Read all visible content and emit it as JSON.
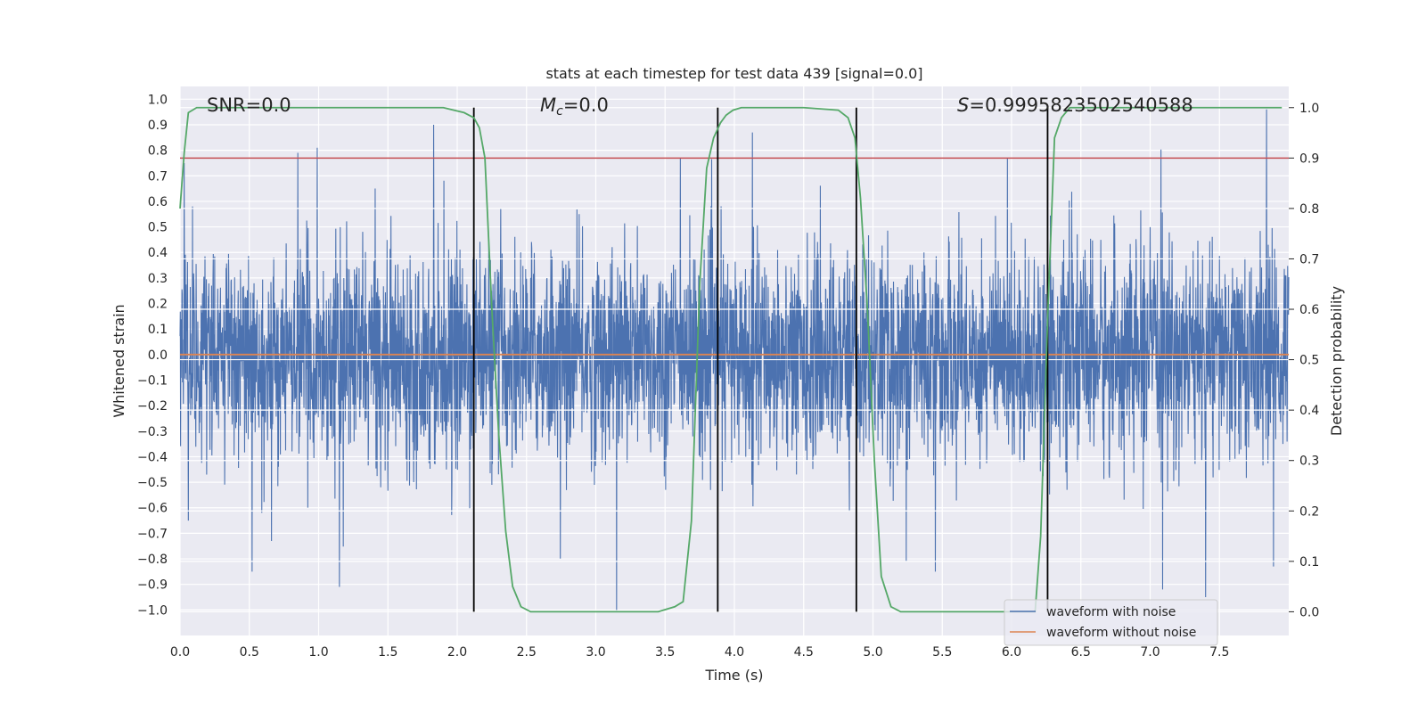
{
  "chart_data": {
    "type": "line",
    "title": "stats at each timestep for test data 439 [signal=0.0]",
    "xlabel": "Time (s)",
    "ylabel_left": "Whitened strain",
    "ylabel_right": "Detection probability",
    "xlim": [
      0.0,
      8.0
    ],
    "ylim_left": [
      -1.1,
      1.05
    ],
    "ylim_right": [
      -0.047,
      1.042
    ],
    "x_ticks": [
      0.0,
      0.5,
      1.0,
      1.5,
      2.0,
      2.5,
      3.0,
      3.5,
      4.0,
      4.5,
      5.0,
      5.5,
      6.0,
      6.5,
      7.0,
      7.5
    ],
    "x_tick_labels": [
      "0.0",
      "0.5",
      "1.0",
      "1.5",
      "2.0",
      "2.5",
      "3.0",
      "3.5",
      "4.0",
      "4.5",
      "5.0",
      "5.5",
      "6.0",
      "6.5",
      "7.0",
      "7.5"
    ],
    "y_left_ticks": [
      -1.0,
      -0.9,
      -0.8,
      -0.7,
      -0.6,
      -0.5,
      -0.4,
      -0.3,
      -0.2,
      -0.1,
      0.0,
      0.1,
      0.2,
      0.3,
      0.4,
      0.5,
      0.6,
      0.7,
      0.8,
      0.9,
      1.0
    ],
    "y_left_tick_labels": [
      "−1.0",
      "−0.9",
      "−0.8",
      "−0.7",
      "−0.6",
      "−0.5",
      "−0.4",
      "−0.3",
      "−0.2",
      "−0.1",
      "0.0",
      "0.1",
      "0.2",
      "0.3",
      "0.4",
      "0.5",
      "0.6",
      "0.7",
      "0.8",
      "0.9",
      "1.0"
    ],
    "y_right_ticks": [
      0.0,
      0.1,
      0.2,
      0.3,
      0.4,
      0.5,
      0.6,
      0.7,
      0.8,
      0.9,
      1.0
    ],
    "y_right_tick_labels": [
      "0.0",
      "0.1",
      "0.2",
      "0.3",
      "0.4",
      "0.5",
      "0.6",
      "0.7",
      "0.8",
      "0.9",
      "1.0"
    ],
    "annotations": {
      "snr": "SNR=0.0",
      "mc_symbol": "M",
      "mc_sub": "c",
      "mc_value": "=0.0",
      "s_symbol": "S",
      "s_value": "=0.9995823502540588"
    },
    "threshold": {
      "value": 0.9,
      "axis": "right",
      "color": "#c44e52"
    },
    "vertical_lines": [
      2.12,
      3.88,
      4.88,
      6.26
    ],
    "series": [
      {
        "name": "waveform with noise",
        "color": "#4c72b0",
        "axis": "left",
        "description": "noisy whitened strain, dense oscillation roughly in [-1, 1]",
        "spikes": [
          {
            "x": 0.03,
            "y": 0.75
          },
          {
            "x": 0.06,
            "y": -0.65
          },
          {
            "x": 0.09,
            "y": 0.58
          },
          {
            "x": 0.52,
            "y": -0.85
          },
          {
            "x": 0.66,
            "y": -0.73
          },
          {
            "x": 0.85,
            "y": 0.79
          },
          {
            "x": 0.99,
            "y": 0.81
          },
          {
            "x": 1.15,
            "y": -0.91
          },
          {
            "x": 1.83,
            "y": 0.9
          },
          {
            "x": 2.12,
            "y": -0.88
          },
          {
            "x": 3.15,
            "y": -1.0
          },
          {
            "x": 3.61,
            "y": 0.77
          },
          {
            "x": 4.13,
            "y": 0.87
          },
          {
            "x": 5.45,
            "y": -0.85
          },
          {
            "x": 5.97,
            "y": 0.77
          },
          {
            "x": 7.09,
            "y": -0.92
          },
          {
            "x": 7.4,
            "y": -0.95
          },
          {
            "x": 7.84,
            "y": 0.96
          },
          {
            "x": 7.89,
            "y": -0.83
          }
        ]
      },
      {
        "name": "waveform without noise",
        "color": "#dd8452",
        "axis": "left",
        "x": [
          0.0,
          8.0
        ],
        "y": [
          0.0,
          0.0
        ]
      },
      {
        "name": "detection probability",
        "color": "#55a868",
        "axis": "right",
        "x": [
          0.0,
          0.03,
          0.06,
          0.12,
          0.5,
          1.0,
          1.5,
          1.9,
          2.05,
          2.12,
          2.16,
          2.2,
          2.25,
          2.3,
          2.35,
          2.4,
          2.46,
          2.53,
          3.0,
          3.45,
          3.57,
          3.63,
          3.69,
          3.75,
          3.8,
          3.85,
          3.9,
          3.94,
          3.99,
          4.05,
          4.13,
          4.5,
          4.75,
          4.82,
          4.87,
          4.91,
          4.96,
          5.01,
          5.06,
          5.13,
          5.2,
          5.5,
          5.9,
          6.17,
          6.21,
          6.26,
          6.31,
          6.36,
          6.42,
          6.48,
          7.0,
          7.5,
          7.95
        ],
        "y": [
          0.8,
          0.91,
          0.99,
          1.0,
          1.0,
          1.0,
          1.0,
          1.0,
          0.99,
          0.98,
          0.96,
          0.9,
          0.6,
          0.35,
          0.16,
          0.05,
          0.01,
          0.0,
          0.0,
          0.0,
          0.01,
          0.02,
          0.18,
          0.65,
          0.88,
          0.94,
          0.97,
          0.985,
          0.995,
          1.0,
          1.0,
          1.0,
          0.995,
          0.98,
          0.94,
          0.82,
          0.6,
          0.3,
          0.07,
          0.01,
          0.0,
          0.0,
          0.0,
          0.0,
          0.15,
          0.58,
          0.94,
          0.98,
          1.0,
          1.0,
          1.0,
          1.0,
          1.0
        ]
      }
    ],
    "legend": {
      "position": "lower-right",
      "entries": [
        {
          "label": "waveform with noise",
          "color": "#4c72b0"
        },
        {
          "label": "waveform without noise",
          "color": "#dd8452"
        }
      ]
    },
    "grid": true
  }
}
